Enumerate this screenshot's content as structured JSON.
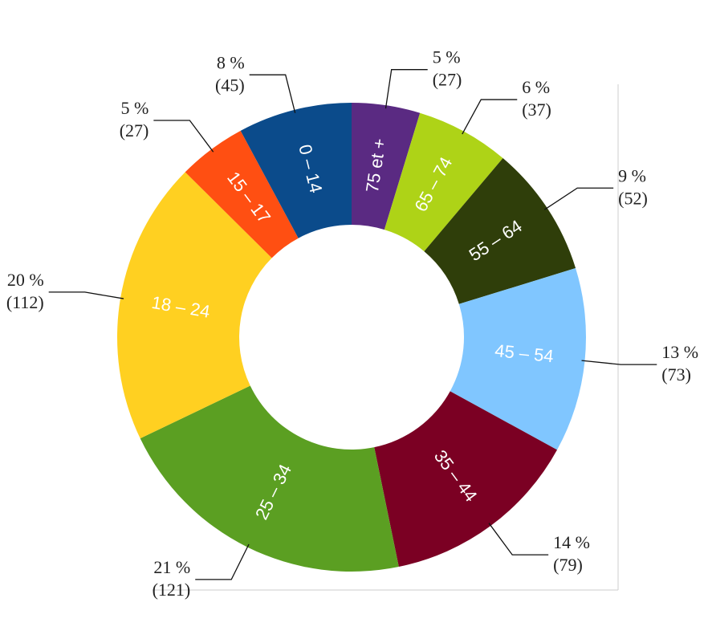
{
  "chart_data": {
    "type": "donut",
    "categories": [
      "75 et +",
      "65 – 74",
      "55 – 64",
      "45 – 54",
      "35 – 44",
      "25 – 34",
      "18 – 24",
      "15 – 17",
      "0 – 14"
    ],
    "values": [
      27,
      37,
      52,
      73,
      79,
      121,
      112,
      27,
      45
    ],
    "value_labels": [
      "(27)",
      "(37)",
      "(52)",
      "(73)",
      "(79)",
      "(121)",
      "(112)",
      "(27)",
      "(45)"
    ],
    "percent_labels": [
      "5 %",
      "6 %",
      "9 %",
      "13 %",
      "14 %",
      "21 %",
      "20 %",
      "5 %",
      "8 %"
    ],
    "colors": [
      "#5a2a82",
      "#aed317",
      "#2f3e0a",
      "#80c6ff",
      "#7b0023",
      "#5b9f22",
      "#ffd021",
      "#ff4f12",
      "#0b4b8b"
    ]
  }
}
